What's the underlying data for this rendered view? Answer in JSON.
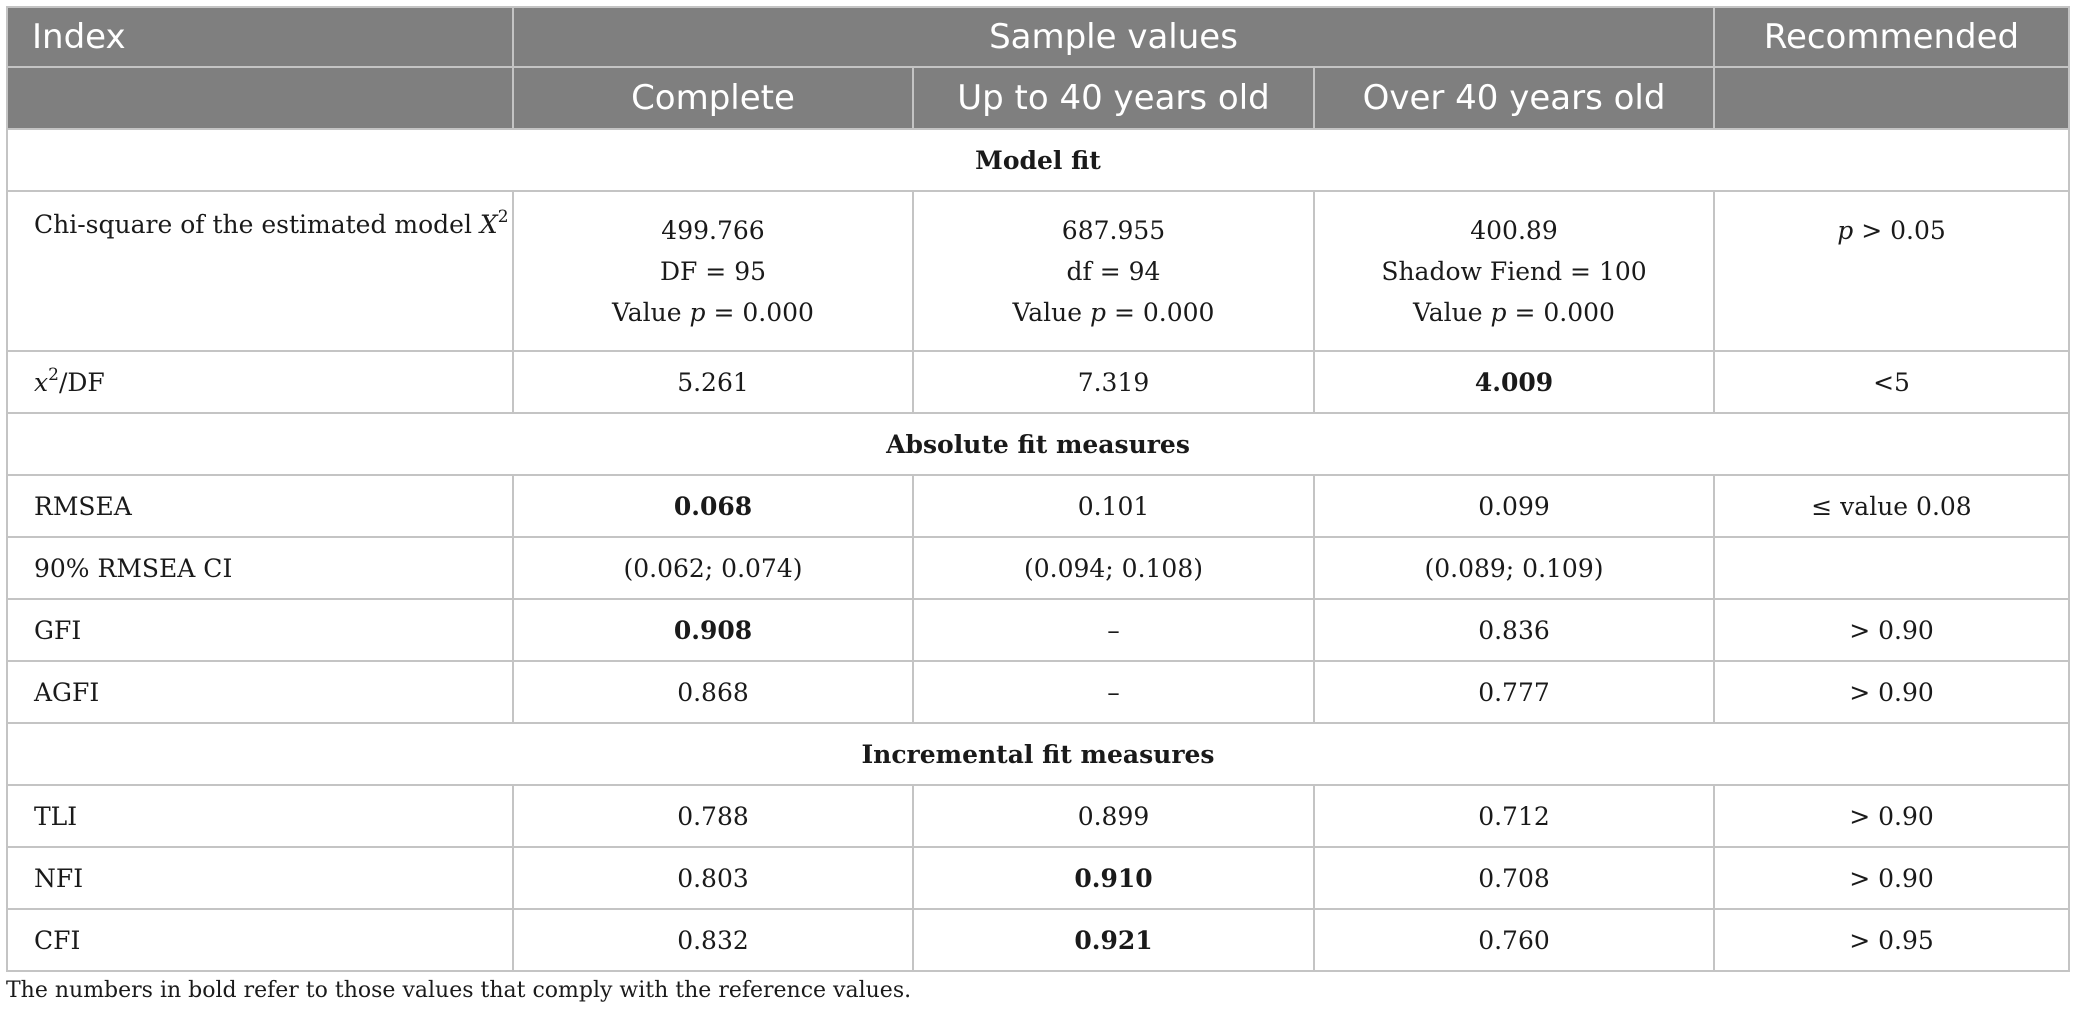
{
  "header": {
    "index": "Index",
    "sample_values": "Sample values",
    "recommended": "Recommended",
    "complete": "Complete",
    "up_to_40": "Up to 40 years old",
    "over_40": "Over 40 years old"
  },
  "sections": {
    "model_fit": "Model fit",
    "absolute": "Absolute fit measures",
    "incremental": "Incremental fit measures"
  },
  "chi": {
    "label": "Chi-square of the estimated model",
    "label_var": "X",
    "label_sup": "2",
    "complete": {
      "value": "499.766",
      "df": "DF = 95",
      "p_prefix": "Value",
      "p_var": "p",
      "p_suffix": "= 0.000"
    },
    "up_to_40": {
      "value": "687.955",
      "df": "df = 94",
      "p_prefix": "Value",
      "p_var": "p",
      "p_suffix": "= 0.000"
    },
    "over_40": {
      "value": "400.89",
      "df": "Shadow Fiend = 100",
      "p_prefix": "Value",
      "p_var": "p",
      "p_suffix": "= 0.000"
    },
    "rec_var": "p",
    "rec_suffix": "> 0.05"
  },
  "x2df": {
    "label_var": "x",
    "label_sup": "2",
    "label_suffix": "/DF",
    "complete": "5.261",
    "up_to_40": "7.319",
    "over_40": "4.009",
    "recommended": "<5"
  },
  "absolute_rows": [
    {
      "label": "RMSEA",
      "complete": "0.068",
      "up_to_40": "0.101",
      "over_40": "0.099",
      "recommended": "≤ value 0.08"
    },
    {
      "label": "90% RMSEA CI",
      "complete": "(0.062; 0.074)",
      "up_to_40": "(0.094; 0.108)",
      "over_40": "(0.089; 0.109)",
      "recommended": ""
    },
    {
      "label": "GFI",
      "complete": "0.908",
      "up_to_40": "–",
      "over_40": "0.836",
      "recommended": "> 0.90"
    },
    {
      "label": "AGFI",
      "complete": "0.868",
      "up_to_40": "–",
      "over_40": "0.777",
      "recommended": "> 0.90"
    }
  ],
  "incremental_rows": [
    {
      "label": "TLI",
      "complete": "0.788",
      "up_to_40": "0.899",
      "over_40": "0.712",
      "recommended": "> 0.90"
    },
    {
      "label": "NFI",
      "complete": "0.803",
      "up_to_40": "0.910",
      "over_40": "0.708",
      "recommended": "> 0.90"
    },
    {
      "label": "CFI",
      "complete": "0.832",
      "up_to_40": "0.921",
      "over_40": "0.760",
      "recommended": "> 0.95"
    }
  ],
  "footnote": "The numbers in bold refer to those values that comply with the reference values."
}
